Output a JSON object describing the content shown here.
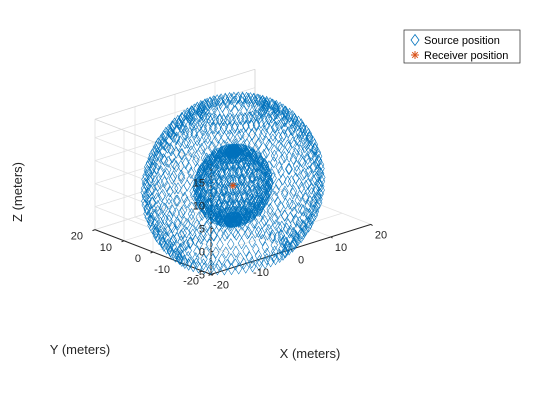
{
  "chart_data": {
    "type": "scatter3d",
    "title": "",
    "xlabel": "X (meters)",
    "ylabel": "Y (meters)",
    "zlabel": "Z (meters)",
    "xlim": [
      -20,
      20
    ],
    "ylim": [
      -20,
      20
    ],
    "zlim": [
      -5,
      19
    ],
    "x_ticks": [
      "-20",
      "-10",
      "0",
      "10",
      "20"
    ],
    "y_ticks": [
      "-20",
      "-10",
      "0",
      "10",
      "20"
    ],
    "z_ticks": [
      "-5",
      "0",
      "5",
      "10",
      "15"
    ],
    "grid": true,
    "box": true,
    "legend_position": "top-right",
    "series": [
      {
        "name": "Source position",
        "marker": "diamond",
        "color": "#0072BD",
        "pattern": "two concentric spherical shells of points centered at (0, 0, 4)",
        "shells": [
          {
            "radius_m": 18,
            "rings": 17,
            "points_per_ring": 48,
            "elevation_range_deg": [
              -52,
              68
            ]
          },
          {
            "radius_m": 7.5,
            "rings": 13,
            "points_per_ring": 40,
            "elevation_range_deg": [
              -80,
              82
            ]
          }
        ]
      },
      {
        "name": "Receiver position",
        "marker": "asterisk",
        "color": "#D95319",
        "points": [
          [
            0,
            0,
            4
          ]
        ]
      }
    ]
  },
  "legend": {
    "items": [
      {
        "label": "Source position",
        "color": "#0072BD",
        "marker": "diamond"
      },
      {
        "label": "Receiver position",
        "color": "#D95319",
        "marker": "asterisk"
      }
    ]
  }
}
